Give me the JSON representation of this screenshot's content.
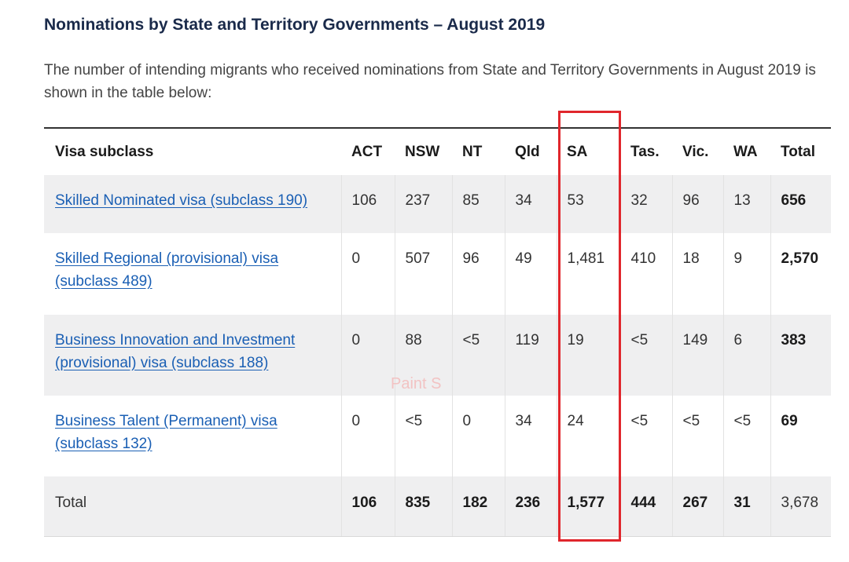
{
  "title": "Nominations by State and Territory Governments – August 2019",
  "intro": "The number of intending migrants who received nominations from State and Territory Governments in August 2019 is shown in the table below:",
  "watermark": "Paint S",
  "table": {
    "headers": [
      "Visa subclass",
      "ACT",
      "NSW",
      "NT",
      "Qld",
      "SA",
      "Tas.",
      "Vic.",
      "WA",
      "Total"
    ],
    "rows": [
      {
        "visa_line1": "Skilled Nominated visa (subclass 190)",
        "visa_line2": "",
        "values": [
          "106",
          "237",
          "85",
          "34",
          "53",
          "32",
          "96",
          "13"
        ],
        "total": "656"
      },
      {
        "visa_line1": "Skilled Regional (provisional) visa",
        "visa_line2": "(subclass 489)",
        "values": [
          "0",
          "507",
          "96",
          "49",
          "1,481",
          "410",
          "18",
          "9"
        ],
        "total": "2,570"
      },
      {
        "visa_line1": "Business Innovation and Investment",
        "visa_line2": "(provisional) visa (subclass 188)",
        "values": [
          "0",
          "88",
          "<5",
          "119",
          "19",
          "<5",
          "149",
          "6"
        ],
        "total": "383"
      },
      {
        "visa_line1": "Business Talent (Permanent) visa",
        "visa_line2": "(subclass 132)",
        "values": [
          "0",
          "<5",
          "0",
          "34",
          "24",
          "<5",
          "<5",
          "<5"
        ],
        "total": "69"
      }
    ],
    "total_row": {
      "label": "Total",
      "values": [
        "106",
        "835",
        "182",
        "236",
        "1,577",
        "444",
        "267",
        "31"
      ],
      "total": "3,678"
    }
  },
  "colors": {
    "highlight": "#e0262c",
    "link": "#1a5fb4",
    "row_shade": "#efeff0"
  }
}
